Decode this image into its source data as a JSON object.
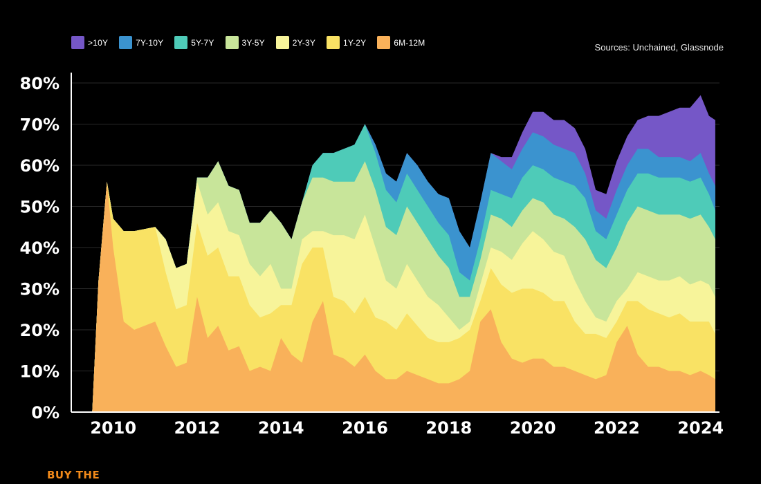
{
  "source": "Sources: Unchained, Glassnode",
  "footer": {
    "brand_text": "BUY THE"
  },
  "chart_data": {
    "type": "area",
    "stacked": true,
    "title": "",
    "xlabel": "",
    "ylabel": "",
    "ylim": [
      0,
      80
    ],
    "xlim": [
      2009.0,
      2024.45
    ],
    "grid": "horizontal",
    "legend_position": "top-left",
    "yticks": [
      "0%",
      "10%",
      "20%",
      "30%",
      "40%",
      "50%",
      "60%",
      "70%",
      "80%"
    ],
    "xticks": [
      "2010",
      "2012",
      "2014",
      "2016",
      "2018",
      "2020",
      "2022",
      "2024"
    ],
    "x": [
      2009.5,
      2009.65,
      2009.85,
      2010.0,
      2010.25,
      2010.5,
      2011.0,
      2011.25,
      2011.5,
      2011.75,
      2012.0,
      2012.25,
      2012.5,
      2012.75,
      2013.0,
      2013.25,
      2013.5,
      2013.75,
      2014.0,
      2014.25,
      2014.5,
      2014.75,
      2015.0,
      2015.25,
      2015.5,
      2015.75,
      2016.0,
      2016.25,
      2016.5,
      2016.75,
      2017.0,
      2017.25,
      2017.5,
      2017.75,
      2018.0,
      2018.25,
      2018.5,
      2018.75,
      2019.0,
      2019.25,
      2019.5,
      2019.75,
      2020.0,
      2020.25,
      2020.5,
      2020.75,
      2021.0,
      2021.25,
      2021.5,
      2021.75,
      2022.0,
      2022.25,
      2022.5,
      2022.75,
      2023.0,
      2023.25,
      2023.5,
      2023.75,
      2024.0,
      2024.2,
      2024.35
    ],
    "series": [
      {
        "name": "6M-12M",
        "color": "#f9b15a",
        "values": [
          0,
          32,
          56,
          40,
          22,
          20,
          22,
          16,
          11,
          12,
          28,
          18,
          21,
          15,
          16,
          10,
          11,
          10,
          18,
          14,
          12,
          22,
          27,
          14,
          13,
          11,
          14,
          10,
          8,
          8,
          10,
          9,
          8,
          7,
          7,
          8,
          10,
          22,
          25,
          17,
          13,
          12,
          13,
          13,
          11,
          11,
          10,
          9,
          8,
          9,
          17,
          21,
          14,
          11,
          11,
          10,
          10,
          9,
          10,
          9,
          8
        ]
      },
      {
        "name": "1Y-2Y",
        "color": "#f9e264",
        "values": [
          0,
          0,
          0,
          7,
          22,
          24,
          23,
          18,
          14,
          14,
          18,
          20,
          19,
          18,
          17,
          16,
          12,
          14,
          8,
          12,
          24,
          18,
          13,
          14,
          14,
          13,
          14,
          13,
          14,
          12,
          14,
          12,
          10,
          10,
          10,
          10,
          10,
          5,
          10,
          14,
          16,
          18,
          17,
          16,
          16,
          16,
          12,
          10,
          11,
          9,
          5,
          6,
          13,
          14,
          13,
          13,
          14,
          13,
          12,
          13,
          11
        ]
      },
      {
        "name": "2Y-3Y",
        "color": "#f7f49a",
        "values": [
          0,
          0,
          0,
          0,
          0,
          0,
          0,
          8,
          10,
          10,
          10,
          10,
          11,
          11,
          10,
          10,
          10,
          12,
          4,
          4,
          6,
          4,
          4,
          15,
          16,
          18,
          20,
          17,
          10,
          10,
          12,
          11,
          10,
          9,
          6,
          2,
          2,
          4,
          5,
          8,
          8,
          11,
          14,
          13,
          12,
          11,
          10,
          8,
          4,
          4,
          5,
          3,
          7,
          8,
          8,
          9,
          9,
          9,
          10,
          9,
          9
        ]
      },
      {
        "name": "3Y-5Y",
        "color": "#c8e59a",
        "values": [
          0,
          0,
          0,
          0,
          0,
          0,
          0,
          0,
          0,
          0,
          1,
          9,
          10,
          11,
          11,
          10,
          13,
          13,
          16,
          12,
          9,
          13,
          13,
          13,
          13,
          14,
          13,
          14,
          13,
          13,
          14,
          14,
          14,
          12,
          12,
          8,
          6,
          6,
          8,
          8,
          8,
          8,
          8,
          9,
          9,
          9,
          13,
          15,
          14,
          13,
          13,
          16,
          16,
          16,
          16,
          16,
          15,
          16,
          16,
          14,
          14
        ]
      },
      {
        "name": "5Y-7Y",
        "color": "#4ecbb8",
        "values": [
          0,
          0,
          0,
          0,
          0,
          0,
          0,
          0,
          0,
          0,
          0,
          0,
          0,
          0,
          0,
          0,
          0,
          0,
          0,
          0,
          0,
          3,
          6,
          7,
          8,
          9,
          9,
          9,
          9,
          8,
          8,
          8,
          8,
          8,
          8,
          6,
          4,
          5,
          6,
          6,
          7,
          8,
          8,
          8,
          9,
          9,
          10,
          10,
          7,
          7,
          8,
          8,
          8,
          9,
          9,
          9,
          9,
          9,
          9,
          8,
          7
        ]
      },
      {
        "name": "7Y-10Y",
        "color": "#3b93cf",
        "values": [
          0,
          0,
          0,
          0,
          0,
          0,
          0,
          0,
          0,
          0,
          0,
          0,
          0,
          0,
          0,
          0,
          0,
          0,
          0,
          0,
          0,
          0,
          0,
          0,
          0,
          0,
          0,
          2,
          4,
          5,
          5,
          6,
          6,
          7,
          9,
          10,
          8,
          9,
          9,
          8,
          7,
          7,
          8,
          8,
          8,
          8,
          8,
          6,
          5,
          5,
          6,
          6,
          6,
          6,
          5,
          5,
          5,
          5,
          6,
          5,
          6
        ]
      },
      {
        "name": ">10Y",
        "color": "#7557c7",
        "values": [
          0,
          0,
          0,
          0,
          0,
          0,
          0,
          0,
          0,
          0,
          0,
          0,
          0,
          0,
          0,
          0,
          0,
          0,
          0,
          0,
          0,
          0,
          0,
          0,
          0,
          0,
          0,
          0,
          0,
          0,
          0,
          0,
          0,
          0,
          0,
          0,
          0,
          0,
          0,
          1,
          3,
          4,
          5,
          6,
          6,
          7,
          6,
          6,
          5,
          6,
          7,
          7,
          7,
          8,
          10,
          11,
          12,
          13,
          14,
          14,
          16
        ]
      }
    ]
  }
}
